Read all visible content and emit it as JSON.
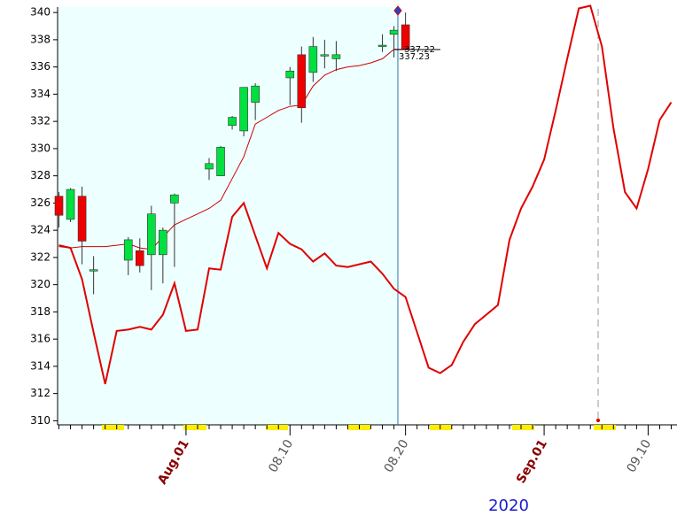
{
  "chart_data": {
    "type": "candlestick",
    "categories": [
      null,
      null,
      null,
      null,
      null,
      null,
      null,
      null,
      null,
      null,
      null,
      "Aug.01",
      null,
      null,
      null,
      null,
      null,
      null,
      null,
      null,
      "08.10",
      null,
      null,
      null,
      null,
      null,
      null,
      null,
      null,
      null,
      "08.20",
      null,
      null,
      null,
      null,
      null,
      null,
      null,
      null,
      null,
      null,
      null,
      "Sep.01",
      null,
      null,
      null,
      null,
      null,
      null,
      null,
      null,
      "09.10",
      null,
      null
    ],
    "open": [
      326.5,
      324.8,
      326.5,
      321.0,
      null,
      null,
      321.8,
      322.5,
      322.2,
      322.2,
      326.0,
      null,
      null,
      328.5,
      328.0,
      331.7,
      331.3,
      333.4,
      null,
      null,
      335.2,
      336.9,
      335.6,
      336.8,
      336.6,
      null,
      null,
      null,
      337.5,
      338.4,
      339.1,
      null,
      null,
      null,
      null,
      null,
      null,
      null,
      null,
      null,
      null,
      null,
      null,
      null,
      null,
      null,
      null,
      null,
      null,
      null,
      null,
      null,
      null,
      null
    ],
    "high": [
      326.8,
      327.1,
      327.2,
      322.1,
      null,
      null,
      323.5,
      323.4,
      325.8,
      324.2,
      326.7,
      null,
      null,
      329.3,
      330.2,
      332.4,
      334.5,
      334.8,
      null,
      null,
      336.0,
      337.5,
      338.2,
      338.0,
      337.9,
      null,
      null,
      null,
      338.4,
      339.0,
      340.0,
      null,
      null,
      null,
      null,
      null,
      null,
      null,
      null,
      null,
      null,
      null,
      null,
      null,
      null,
      null,
      null,
      null,
      null,
      null,
      null,
      null,
      null,
      null
    ],
    "low": [
      324.2,
      324.6,
      321.5,
      319.3,
      null,
      null,
      320.7,
      320.9,
      319.6,
      320.1,
      321.3,
      null,
      null,
      327.7,
      328.0,
      331.4,
      330.9,
      332.1,
      null,
      null,
      333.2,
      331.9,
      334.9,
      335.9,
      335.7,
      null,
      null,
      null,
      337.1,
      336.7,
      337.2,
      null,
      null,
      null,
      null,
      null,
      null,
      null,
      null,
      null,
      null,
      null,
      null,
      null,
      null,
      null,
      null,
      null,
      null,
      null,
      null,
      null,
      null,
      null
    ],
    "close": [
      325.1,
      327.0,
      323.2,
      321.1,
      null,
      null,
      323.3,
      321.4,
      325.2,
      324.0,
      326.6,
      null,
      null,
      328.9,
      330.1,
      332.3,
      334.5,
      334.6,
      null,
      null,
      335.7,
      333.0,
      337.5,
      336.9,
      336.9,
      null,
      null,
      null,
      337.6,
      338.7,
      337.3,
      null,
      null,
      null,
      null,
      null,
      null,
      null,
      null,
      null,
      null,
      null,
      null,
      null,
      null,
      null,
      null,
      null,
      null,
      null,
      null,
      null,
      null,
      null
    ],
    "up_color": "#00e040",
    "down_color": "#ee0000",
    "series": [
      {
        "color": "#cc0000",
        "width": 1,
        "values": [
          322.8,
          322.7,
          322.8,
          322.8,
          322.8,
          322.9,
          323.0,
          322.7,
          322.6,
          323.5,
          324.4,
          324.8,
          325.2,
          325.6,
          326.2,
          327.8,
          329.4,
          331.8,
          332.3,
          332.8,
          333.1,
          333.2,
          334.6,
          335.4,
          335.8,
          336.0,
          336.1,
          336.3,
          336.6,
          337.3,
          337.3,
          null,
          null,
          null,
          null,
          null,
          null,
          null,
          null,
          null,
          null,
          null,
          null,
          null,
          null,
          null,
          null,
          null,
          null,
          null,
          null,
          null,
          null,
          null
        ]
      },
      {
        "color": "#e00000",
        "width": 2,
        "values": [
          322.9,
          322.7,
          320.4,
          316.5,
          312.7,
          316.6,
          316.7,
          316.9,
          316.7,
          317.8,
          320.1,
          316.6,
          316.7,
          321.2,
          321.1,
          325.0,
          326.0,
          323.6,
          321.2,
          323.8,
          323.0,
          322.6,
          321.7,
          322.3,
          321.4,
          321.3,
          321.5,
          321.7,
          320.8,
          319.7,
          319.1,
          316.5,
          313.9,
          313.5,
          314.1,
          315.8,
          317.1,
          317.8,
          318.5,
          323.3,
          325.6,
          327.2,
          329.2,
          332.8,
          336.6,
          340.3,
          340.5,
          337.5,
          331.5,
          326.8,
          325.6,
          328.5,
          332.1,
          333.4
        ]
      }
    ],
    "ylim": [
      309.7,
      340.4
    ],
    "yticks": [
      310,
      312,
      314,
      316,
      318,
      320,
      322,
      324,
      326,
      328,
      330,
      332,
      334,
      336,
      338,
      340
    ],
    "price_labels": [
      "337.22",
      "337.23"
    ],
    "year": "2020"
  }
}
